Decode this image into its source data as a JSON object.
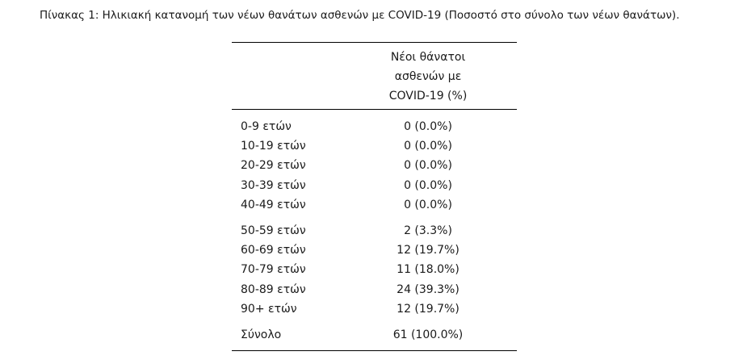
{
  "caption": "Πίνακας 1: Ηλικιακή κατανομή των νέων θανάτων ασθενών με COVID-19 (Ποσοστό στο σύνολο των νέων θανάτων).",
  "table": {
    "header": {
      "age_column": "",
      "deaths_column_line1": "Νέοι θάνατοι",
      "deaths_column_line2": "ασθενών με",
      "deaths_column_line3": "COVID-19 (%)"
    },
    "group1": [
      {
        "age": "0-9 ετών",
        "value": "0 (0.0%)"
      },
      {
        "age": "10-19 ετών",
        "value": "0 (0.0%)"
      },
      {
        "age": "20-29 ετών",
        "value": "0 (0.0%)"
      },
      {
        "age": "30-39 ετών",
        "value": "0 (0.0%)"
      },
      {
        "age": "40-49 ετών",
        "value": "0 (0.0%)"
      }
    ],
    "group2": [
      {
        "age": "50-59 ετών",
        "value": "2 (3.3%)"
      },
      {
        "age": "60-69 ετών",
        "value": "12 (19.7%)"
      },
      {
        "age": "70-79 ετών",
        "value": "11 (18.0%)"
      },
      {
        "age": "80-89 ετών",
        "value": "24 (39.3%)"
      },
      {
        "age": "90+ ετών",
        "value": "12 (19.7%)"
      }
    ],
    "total": {
      "age": "Σύνολο",
      "value": "61 (100.0%)"
    }
  }
}
